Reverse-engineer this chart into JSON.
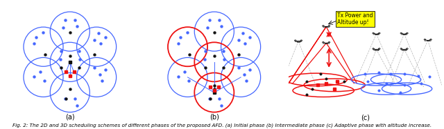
{
  "fig_width": 6.4,
  "fig_height": 1.87,
  "dpi": 100,
  "background": "#ffffff",
  "caption": "Fig. 2: The 2D and 3D scheduling schemes of different phases of the proposed AFD. (a) Initial phase (b) Intermediate phase (c) Adaptive phase with altitude increase.",
  "caption_fontsize": 5.2,
  "panel_labels": [
    "(a)",
    "(b)",
    "(c)"
  ],
  "panel_label_fontsize": 7,
  "annotation_text": "Tx Power and\nAltitude up!",
  "annotation_fontsize": 5.5,
  "annotation_bg": "#ffff00",
  "blue_color": "#4466ff",
  "red_color": "#ee1111",
  "black_color": "#111111"
}
